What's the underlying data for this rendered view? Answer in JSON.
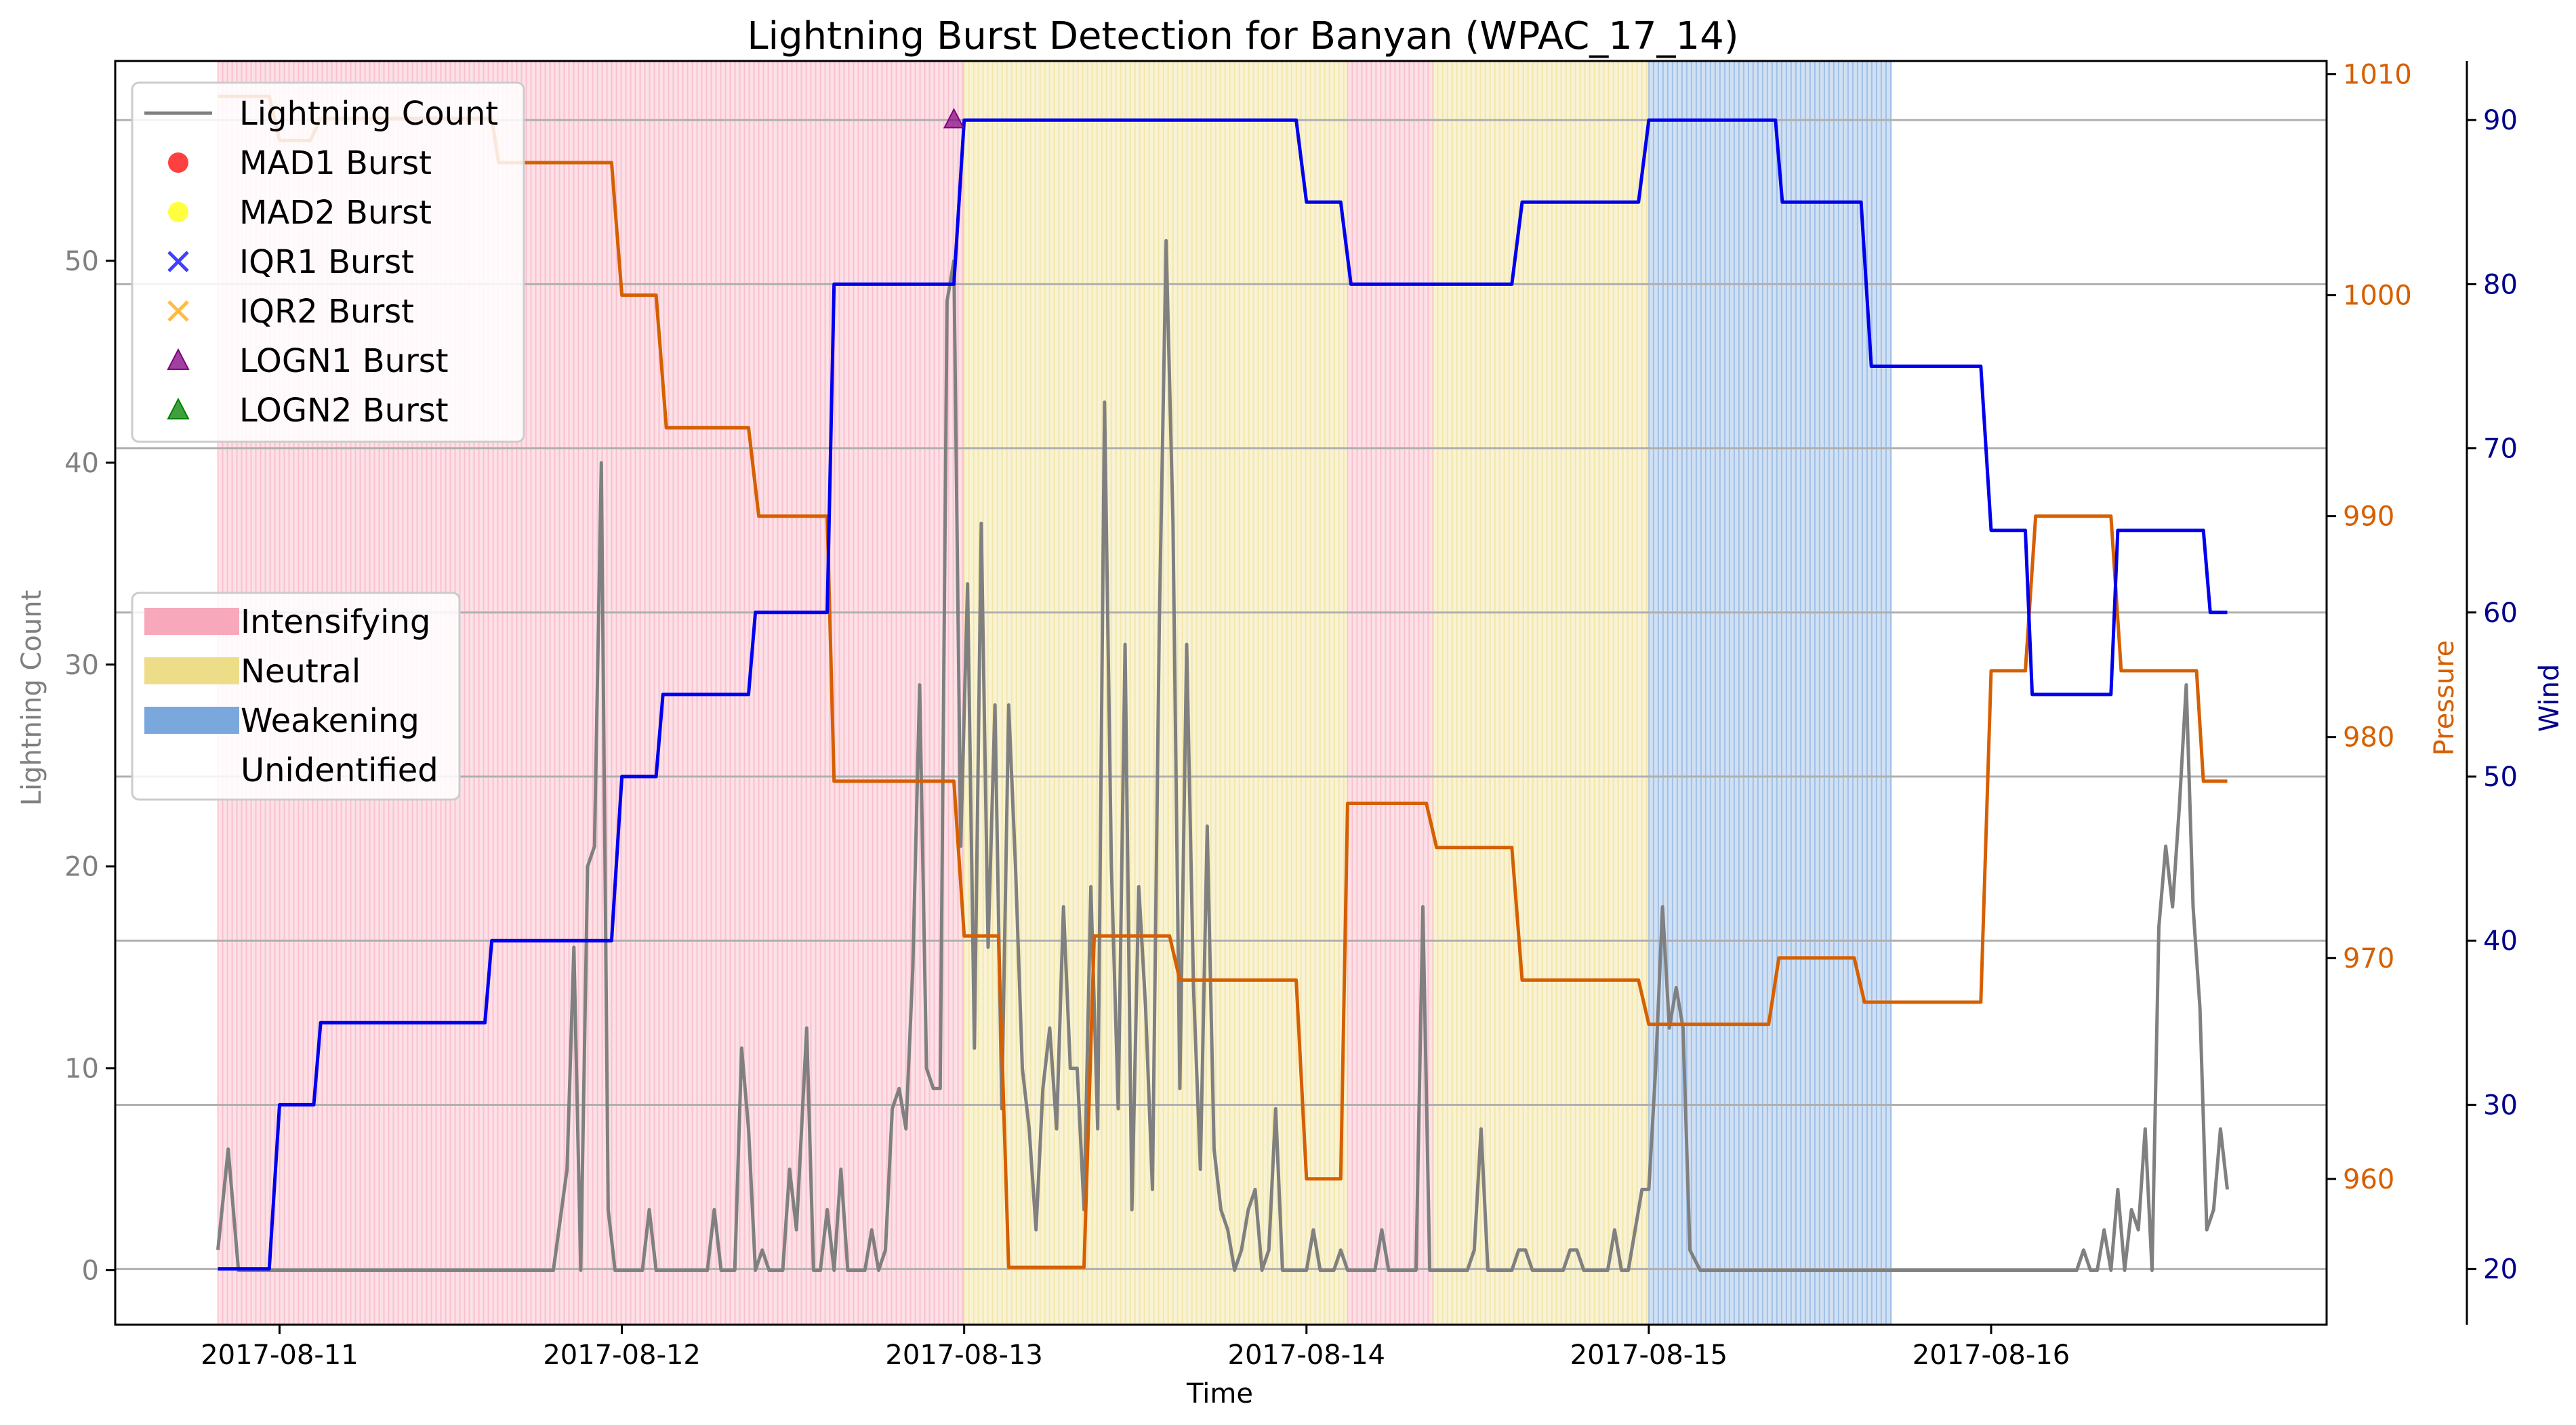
{
  "chart_data": {
    "type": "line",
    "title": "Lightning Burst Detection for Banyan (WPAC_17_14)",
    "xlabel": "Time",
    "ylabel_left": "Lightning Count",
    "ylabel_right1": "Pressure",
    "ylabel_right2": "Wind",
    "x_ticks": [
      "2017-08-11",
      "2017-08-12",
      "2017-08-13",
      "2017-08-14",
      "2017-08-15",
      "2017-08-16"
    ],
    "y_left_ticks": [
      0,
      10,
      20,
      30,
      40,
      50
    ],
    "y_left_range": [
      -2.7,
      59.9
    ],
    "y_pressure_ticks": [
      960,
      970,
      980,
      990,
      1000,
      1010
    ],
    "y_pressure_range": [
      953.4,
      1010.6
    ],
    "y_wind_ticks": [
      20,
      30,
      40,
      50,
      60,
      70,
      80,
      90
    ],
    "y_wind_range": [
      16.6,
      93.6
    ],
    "x_range_days": [
      10.52,
      16.98
    ],
    "grid": "horizontal lines at wind ticks",
    "colors": {
      "lightning": "#808080",
      "pressure": "#d65f00",
      "wind": "#0000ee",
      "intensifying": "#f7a8bb",
      "neutral": "#eedd88",
      "weakening": "#7aa8dd",
      "pressure_axis": "#d65f00",
      "wind_axis": "#00008b",
      "left_axis": "#808080"
    },
    "phases": [
      {
        "phase": "Intensifying",
        "start": 10.82,
        "end": 13.0
      },
      {
        "phase": "Neutral",
        "start": 13.0,
        "end": 14.12
      },
      {
        "phase": "Intensifying",
        "start": 14.12,
        "end": 14.37
      },
      {
        "phase": "Neutral",
        "start": 14.37,
        "end": 15.0
      },
      {
        "phase": "Weakening",
        "start": 15.0,
        "end": 15.71
      }
    ],
    "series": [
      {
        "name": "Lightning Count",
        "axis": "left",
        "points": [
          [
            10.82,
            1
          ],
          [
            10.85,
            6
          ],
          [
            10.88,
            0
          ],
          [
            11.0,
            0
          ],
          [
            11.5,
            0
          ],
          [
            11.8,
            0
          ],
          [
            11.84,
            5
          ],
          [
            11.86,
            16
          ],
          [
            11.88,
            0
          ],
          [
            11.9,
            20
          ],
          [
            11.92,
            21
          ],
          [
            11.94,
            40
          ],
          [
            11.96,
            3
          ],
          [
            11.98,
            0
          ],
          [
            12.0,
            0
          ],
          [
            12.06,
            0
          ],
          [
            12.08,
            3
          ],
          [
            12.1,
            0
          ],
          [
            12.2,
            0
          ],
          [
            12.25,
            0
          ],
          [
            12.27,
            3
          ],
          [
            12.29,
            0
          ],
          [
            12.33,
            0
          ],
          [
            12.35,
            11
          ],
          [
            12.37,
            7
          ],
          [
            12.39,
            0
          ],
          [
            12.41,
            1
          ],
          [
            12.43,
            0
          ],
          [
            12.47,
            0
          ],
          [
            12.49,
            5
          ],
          [
            12.51,
            2
          ],
          [
            12.54,
            12
          ],
          [
            12.56,
            0
          ],
          [
            12.58,
            0
          ],
          [
            12.6,
            3
          ],
          [
            12.62,
            0
          ],
          [
            12.64,
            5
          ],
          [
            12.66,
            0
          ],
          [
            12.71,
            0
          ],
          [
            12.73,
            2
          ],
          [
            12.75,
            0
          ],
          [
            12.77,
            1
          ],
          [
            12.79,
            8
          ],
          [
            12.81,
            9
          ],
          [
            12.83,
            7
          ],
          [
            12.85,
            15
          ],
          [
            12.87,
            29
          ],
          [
            12.89,
            10
          ],
          [
            12.91,
            9
          ],
          [
            12.93,
            9
          ],
          [
            12.95,
            48
          ],
          [
            12.97,
            50
          ],
          [
            12.99,
            21
          ],
          [
            13.01,
            34
          ],
          [
            13.03,
            11
          ],
          [
            13.05,
            37
          ],
          [
            13.07,
            16
          ],
          [
            13.09,
            28
          ],
          [
            13.11,
            8
          ],
          [
            13.13,
            28
          ],
          [
            13.15,
            20
          ],
          [
            13.17,
            10
          ],
          [
            13.19,
            7
          ],
          [
            13.21,
            2
          ],
          [
            13.23,
            9
          ],
          [
            13.25,
            12
          ],
          [
            13.27,
            7
          ],
          [
            13.29,
            18
          ],
          [
            13.31,
            10
          ],
          [
            13.33,
            10
          ],
          [
            13.35,
            3
          ],
          [
            13.37,
            19
          ],
          [
            13.39,
            7
          ],
          [
            13.41,
            43
          ],
          [
            13.43,
            20
          ],
          [
            13.45,
            8
          ],
          [
            13.47,
            31
          ],
          [
            13.49,
            3
          ],
          [
            13.51,
            19
          ],
          [
            13.53,
            13
          ],
          [
            13.55,
            4
          ],
          [
            13.57,
            32
          ],
          [
            13.59,
            51
          ],
          [
            13.61,
            37
          ],
          [
            13.63,
            9
          ],
          [
            13.65,
            31
          ],
          [
            13.67,
            14
          ],
          [
            13.69,
            5
          ],
          [
            13.71,
            22
          ],
          [
            13.73,
            6
          ],
          [
            13.75,
            3
          ],
          [
            13.77,
            2
          ],
          [
            13.79,
            0
          ],
          [
            13.81,
            1
          ],
          [
            13.83,
            3
          ],
          [
            13.85,
            4
          ],
          [
            13.87,
            0
          ],
          [
            13.89,
            1
          ],
          [
            13.91,
            8
          ],
          [
            13.93,
            0
          ],
          [
            13.95,
            0
          ],
          [
            13.97,
            0
          ],
          [
            14.0,
            0
          ],
          [
            14.02,
            2
          ],
          [
            14.04,
            0
          ],
          [
            14.08,
            0
          ],
          [
            14.1,
            1
          ],
          [
            14.12,
            0
          ],
          [
            14.2,
            0
          ],
          [
            14.22,
            2
          ],
          [
            14.24,
            0
          ],
          [
            14.3,
            0
          ],
          [
            14.32,
            0
          ],
          [
            14.34,
            18
          ],
          [
            14.36,
            0
          ],
          [
            14.4,
            0
          ],
          [
            14.47,
            0
          ],
          [
            14.49,
            1
          ],
          [
            14.51,
            7
          ],
          [
            14.53,
            0
          ],
          [
            14.6,
            0
          ],
          [
            14.62,
            1
          ],
          [
            14.64,
            1
          ],
          [
            14.66,
            0
          ],
          [
            14.75,
            0
          ],
          [
            14.77,
            1
          ],
          [
            14.79,
            1
          ],
          [
            14.81,
            0
          ],
          [
            14.88,
            0
          ],
          [
            14.9,
            2
          ],
          [
            14.92,
            0
          ],
          [
            14.94,
            0
          ],
          [
            14.96,
            2
          ],
          [
            14.98,
            4
          ],
          [
            15.0,
            4
          ],
          [
            15.02,
            10
          ],
          [
            15.04,
            18
          ],
          [
            15.06,
            12
          ],
          [
            15.08,
            14
          ],
          [
            15.1,
            12
          ],
          [
            15.12,
            1
          ],
          [
            15.15,
            0
          ],
          [
            15.5,
            0
          ],
          [
            16.0,
            0
          ],
          [
            16.2,
            0
          ],
          [
            16.25,
            0
          ],
          [
            16.27,
            1
          ],
          [
            16.29,
            0
          ],
          [
            16.31,
            0
          ],
          [
            16.33,
            2
          ],
          [
            16.35,
            0
          ],
          [
            16.37,
            4
          ],
          [
            16.39,
            0
          ],
          [
            16.41,
            3
          ],
          [
            16.43,
            2
          ],
          [
            16.45,
            7
          ],
          [
            16.47,
            0
          ],
          [
            16.49,
            17
          ],
          [
            16.51,
            21
          ],
          [
            16.53,
            18
          ],
          [
            16.55,
            23
          ],
          [
            16.57,
            29
          ],
          [
            16.59,
            18
          ],
          [
            16.61,
            13
          ],
          [
            16.63,
            2
          ],
          [
            16.65,
            3
          ],
          [
            16.67,
            7
          ],
          [
            16.69,
            4
          ]
        ]
      },
      {
        "name": "Pressure",
        "axis": "pressure",
        "points": [
          [
            10.82,
            1009
          ],
          [
            10.97,
            1009
          ],
          [
            11.0,
            1007
          ],
          [
            11.09,
            1007
          ],
          [
            11.12,
            1008
          ],
          [
            11.62,
            1008
          ],
          [
            11.64,
            1006
          ],
          [
            11.97,
            1006
          ],
          [
            12.0,
            1000
          ],
          [
            12.1,
            1000
          ],
          [
            12.13,
            994
          ],
          [
            12.37,
            994
          ],
          [
            12.4,
            990
          ],
          [
            12.6,
            990
          ],
          [
            12.62,
            978
          ],
          [
            12.97,
            978
          ],
          [
            13.0,
            971
          ],
          [
            13.1,
            971
          ],
          [
            13.13,
            956
          ],
          [
            13.35,
            956
          ],
          [
            13.38,
            971
          ],
          [
            13.6,
            971
          ],
          [
            13.63,
            969
          ],
          [
            13.97,
            969
          ],
          [
            14.0,
            960
          ],
          [
            14.1,
            960
          ],
          [
            14.12,
            977
          ],
          [
            14.35,
            977
          ],
          [
            14.38,
            975
          ],
          [
            14.6,
            975
          ],
          [
            14.63,
            969
          ],
          [
            14.97,
            969
          ],
          [
            15.0,
            967
          ],
          [
            15.35,
            967
          ],
          [
            15.38,
            970
          ],
          [
            15.6,
            970
          ],
          [
            15.63,
            968
          ],
          [
            15.97,
            968
          ],
          [
            16.0,
            983
          ],
          [
            16.1,
            983
          ],
          [
            16.13,
            990
          ],
          [
            16.35,
            990
          ],
          [
            16.38,
            983
          ],
          [
            16.6,
            983
          ],
          [
            16.62,
            978
          ],
          [
            16.69,
            978
          ]
        ]
      },
      {
        "name": "Wind",
        "axis": "wind",
        "points": [
          [
            10.82,
            20
          ],
          [
            10.97,
            20
          ],
          [
            11.0,
            30
          ],
          [
            11.1,
            30
          ],
          [
            11.12,
            35
          ],
          [
            11.6,
            35
          ],
          [
            11.62,
            40
          ],
          [
            11.97,
            40
          ],
          [
            12.0,
            50
          ],
          [
            12.1,
            50
          ],
          [
            12.12,
            55
          ],
          [
            12.37,
            55
          ],
          [
            12.39,
            60
          ],
          [
            12.6,
            60
          ],
          [
            12.62,
            80
          ],
          [
            12.97,
            80
          ],
          [
            13.0,
            90
          ],
          [
            13.97,
            90
          ],
          [
            14.0,
            85
          ],
          [
            14.1,
            85
          ],
          [
            14.13,
            80
          ],
          [
            14.6,
            80
          ],
          [
            14.63,
            85
          ],
          [
            14.97,
            85
          ],
          [
            15.0,
            90
          ],
          [
            15.37,
            90
          ],
          [
            15.39,
            85
          ],
          [
            15.62,
            85
          ],
          [
            15.65,
            75
          ],
          [
            15.97,
            75
          ],
          [
            16.0,
            65
          ],
          [
            16.1,
            65
          ],
          [
            16.12,
            55
          ],
          [
            16.35,
            55
          ],
          [
            16.37,
            65
          ],
          [
            16.62,
            65
          ],
          [
            16.64,
            60
          ],
          [
            16.69,
            60
          ]
        ]
      }
    ],
    "markers": [
      {
        "series": "LOGN1 Burst",
        "x": 12.97,
        "y": 57
      }
    ],
    "legend_series": [
      {
        "label": "Lightning Count",
        "type": "line",
        "color": "#808080"
      },
      {
        "label": "MAD1 Burst",
        "type": "circle",
        "color": "#ff0000"
      },
      {
        "label": "MAD2 Burst",
        "type": "circle",
        "color": "#ffff00"
      },
      {
        "label": "IQR1 Burst",
        "type": "x",
        "color": "#0000ff"
      },
      {
        "label": "IQR2 Burst",
        "type": "x",
        "color": "#ffa500"
      },
      {
        "label": "LOGN1 Burst",
        "type": "triangle",
        "color": "#800080"
      },
      {
        "label": "LOGN2 Burst",
        "type": "triangle",
        "color": "#008000"
      }
    ],
    "legend_phases": [
      {
        "label": "Intensifying",
        "color": "#f7a8bb"
      },
      {
        "label": "Neutral",
        "color": "#eedd88"
      },
      {
        "label": "Weakening",
        "color": "#7aa8dd"
      },
      {
        "label": "Unidentified",
        "color": "none"
      }
    ],
    "legend_placement": [
      "top-left",
      "center-left"
    ]
  }
}
